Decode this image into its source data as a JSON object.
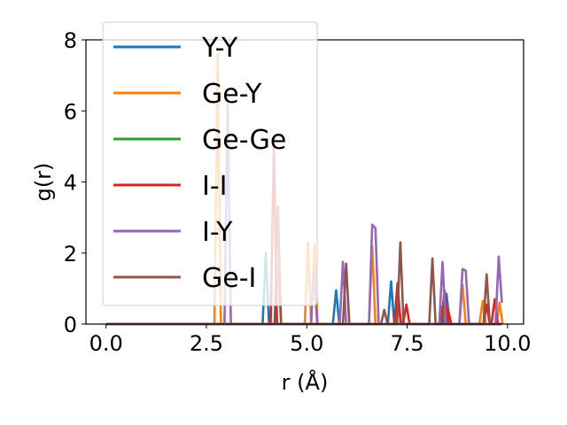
{
  "chart_data": {
    "type": "line",
    "title": "",
    "xlabel": "r (Å)",
    "ylabel": "g(r)",
    "xlim": [
      -0.5,
      10.4
    ],
    "ylim": [
      0,
      8
    ],
    "xticks": [
      0.0,
      2.5,
      5.0,
      7.5,
      10.0
    ],
    "xtick_labels": [
      "0.0",
      "2.5",
      "5.0",
      "7.5",
      "10.0"
    ],
    "yticks": [
      0,
      2,
      4,
      6,
      8
    ],
    "ytick_labels": [
      "0",
      "2",
      "4",
      "6",
      "8"
    ],
    "grid": false,
    "legend_position": "upper-left",
    "series": [
      {
        "name": "Y-Y",
        "color": "#1f77b4",
        "points": [
          [
            0,
            0
          ],
          [
            3.9,
            0
          ],
          [
            3.98,
            2.0
          ],
          [
            4.06,
            0
          ],
          [
            5.65,
            0
          ],
          [
            5.73,
            0.95
          ],
          [
            5.81,
            0
          ],
          [
            7.02,
            0
          ],
          [
            7.1,
            1.2
          ],
          [
            7.18,
            0
          ],
          [
            8.4,
            0
          ],
          [
            8.48,
            0.85
          ],
          [
            8.56,
            0
          ],
          [
            9.85,
            0
          ]
        ]
      },
      {
        "name": "Ge-Y",
        "color": "#ff7f0e",
        "points": [
          [
            0,
            0
          ],
          [
            2.7,
            0
          ],
          [
            2.78,
            7.6
          ],
          [
            2.86,
            0
          ],
          [
            4.2,
            0
          ],
          [
            4.28,
            1.7
          ],
          [
            4.36,
            0
          ],
          [
            4.95,
            0
          ],
          [
            5.03,
            2.3
          ],
          [
            5.11,
            0
          ],
          [
            5.19,
            2.25
          ],
          [
            5.27,
            0
          ],
          [
            6.55,
            0
          ],
          [
            6.63,
            2.2
          ],
          [
            6.71,
            0
          ],
          [
            7.18,
            0
          ],
          [
            7.26,
            0.95
          ],
          [
            7.34,
            0
          ],
          [
            8.8,
            0
          ],
          [
            8.88,
            1.1
          ],
          [
            8.96,
            0
          ],
          [
            9.3,
            0
          ],
          [
            9.38,
            0.65
          ],
          [
            9.46,
            0
          ],
          [
            9.72,
            0
          ],
          [
            9.8,
            0.6
          ],
          [
            9.88,
            0
          ]
        ]
      },
      {
        "name": "Ge-Ge",
        "color": "#2ca02c",
        "points": [
          [
            0,
            0
          ],
          [
            7.2,
            0
          ],
          [
            7.28,
            0.55
          ],
          [
            7.36,
            0
          ],
          [
            8.3,
            0
          ],
          [
            8.38,
            0.5
          ],
          [
            8.46,
            0
          ],
          [
            9.85,
            0
          ]
        ]
      },
      {
        "name": "I-I",
        "color": "#d62728",
        "points": [
          [
            0,
            0
          ],
          [
            4.1,
            0
          ],
          [
            4.18,
            5.0
          ],
          [
            4.26,
            0
          ],
          [
            7.18,
            0
          ],
          [
            7.26,
            1.15
          ],
          [
            7.34,
            0
          ],
          [
            7.4,
            0
          ],
          [
            7.48,
            0.55
          ],
          [
            7.56,
            0
          ],
          [
            8.35,
            0
          ],
          [
            8.43,
            0.95
          ],
          [
            8.51,
            0
          ],
          [
            8.52,
            0.4
          ],
          [
            8.6,
            0
          ],
          [
            9.4,
            0
          ],
          [
            9.48,
            0.55
          ],
          [
            9.56,
            0
          ],
          [
            9.6,
            0
          ],
          [
            9.68,
            0.7
          ],
          [
            9.76,
            0
          ],
          [
            9.85,
            0
          ]
        ]
      },
      {
        "name": "I-Y",
        "color": "#9467bd",
        "points": [
          [
            0,
            0
          ],
          [
            2.95,
            0
          ],
          [
            3.03,
            6.2
          ],
          [
            3.11,
            0
          ],
          [
            5.1,
            0
          ],
          [
            5.18,
            1.5
          ],
          [
            5.26,
            0
          ],
          [
            5.82,
            0
          ],
          [
            5.9,
            1.75
          ],
          [
            5.98,
            0
          ],
          [
            6.55,
            0
          ],
          [
            6.63,
            2.8
          ],
          [
            6.71,
            2.7
          ],
          [
            6.79,
            0
          ],
          [
            8.3,
            0
          ],
          [
            8.38,
            1.75
          ],
          [
            8.46,
            0
          ],
          [
            8.8,
            0
          ],
          [
            8.88,
            1.55
          ],
          [
            8.96,
            1.5
          ],
          [
            9.04,
            0
          ],
          [
            9.7,
            0
          ],
          [
            9.78,
            1.9
          ],
          [
            9.86,
            0.6
          ]
        ]
      },
      {
        "name": "Ge-I",
        "color": "#8c564b",
        "points": [
          [
            0,
            0
          ],
          [
            4.2,
            0
          ],
          [
            4.28,
            3.3
          ],
          [
            4.36,
            0
          ],
          [
            5.9,
            0
          ],
          [
            5.98,
            1.7
          ],
          [
            6.06,
            0
          ],
          [
            6.85,
            0
          ],
          [
            6.93,
            0.4
          ],
          [
            7.01,
            0
          ],
          [
            7.25,
            0
          ],
          [
            7.33,
            2.3
          ],
          [
            7.41,
            0
          ],
          [
            8.05,
            0
          ],
          [
            8.13,
            1.85
          ],
          [
            8.21,
            0
          ],
          [
            9.4,
            0
          ],
          [
            9.48,
            1.4
          ],
          [
            9.56,
            0
          ],
          [
            9.85,
            0
          ]
        ]
      }
    ]
  }
}
